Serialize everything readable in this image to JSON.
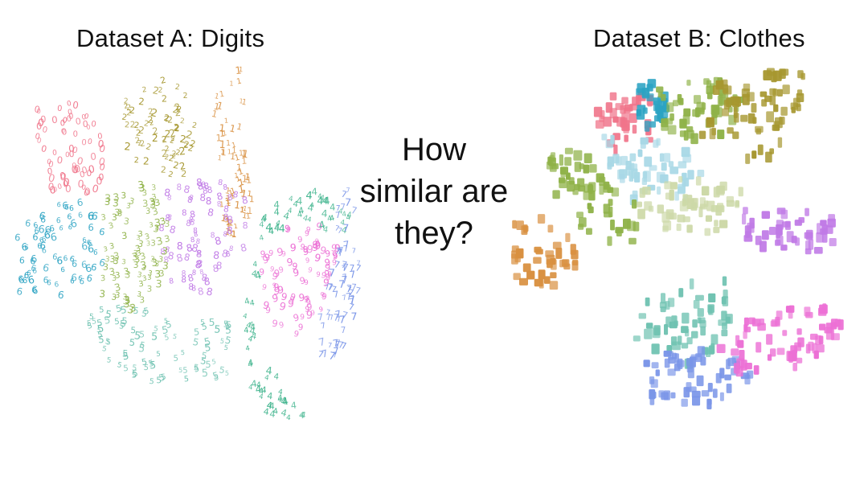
{
  "title_a": "Dataset A: Digits",
  "title_b": "Dataset B: Clothes",
  "question": [
    "How",
    "similar are",
    "they?"
  ],
  "palette": {
    "red": "#f0748a",
    "teal_blue": "#2ba3c3",
    "olive": "#a6972f",
    "green": "#8fb248",
    "violet": "#c07ae6",
    "orange": "#d99040",
    "sea_green": "#3fb48d",
    "pink": "#ec70d5",
    "blue": "#7a95e8",
    "mint": "#6fc2b1"
  },
  "dataset_a": {
    "kind": "digit-glyphs",
    "clusters": [
      {
        "label": "0",
        "color": "#f0748a"
      },
      {
        "label": "1",
        "color": "#d99040"
      },
      {
        "label": "2",
        "color": "#a6972f"
      },
      {
        "label": "3",
        "color": "#8fb248"
      },
      {
        "label": "4",
        "color": "#3fb48d"
      },
      {
        "label": "5",
        "color": "#6fc2b1"
      },
      {
        "label": "6",
        "color": "#2ba3c3"
      },
      {
        "label": "7",
        "color": "#7a95e8"
      },
      {
        "label": "8",
        "color": "#c07ae6"
      },
      {
        "label": "9",
        "color": "#ec70d5"
      }
    ]
  },
  "dataset_b": {
    "kind": "clothing-thumbnails",
    "clusters": [
      {
        "color": "#f0748a"
      },
      {
        "color": "#2ba3c3"
      },
      {
        "color": "#a6972f"
      },
      {
        "color": "#8fb248"
      },
      {
        "color": "#c07ae6"
      },
      {
        "color": "#d99040"
      },
      {
        "color": "#6fc2b1"
      },
      {
        "color": "#ec70d5"
      },
      {
        "color": "#7a95e8"
      },
      {
        "color": "#cdd9a8"
      },
      {
        "color": "#a8d8e6"
      }
    ]
  }
}
